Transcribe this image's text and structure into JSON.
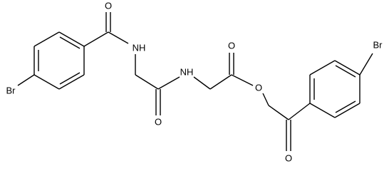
{
  "atoms": [
    "O",
    "NH",
    "Br",
    "O",
    "NH",
    "O",
    "O",
    "Br",
    "O"
  ]
}
